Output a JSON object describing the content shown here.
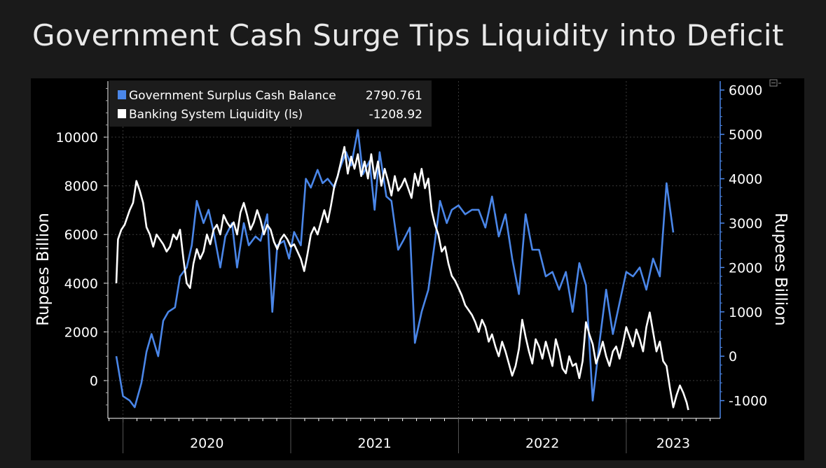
{
  "title": "Government Cash Surge Tips Liquidity into Deficit",
  "chart_data": {
    "type": "line",
    "legend_placement": "top-left",
    "grid": true,
    "x_axis": {
      "years": [
        "2020",
        "2021",
        "2022",
        "2023"
      ],
      "range": [
        "2019-12",
        "2023-09"
      ]
    },
    "y_left": {
      "label": "Rupees Billion",
      "ticks": [
        "10000",
        "8000",
        "6000",
        "4000",
        "2000",
        "0"
      ],
      "range": [
        -1550,
        12300
      ]
    },
    "y_right": {
      "label": "Rupees Billion",
      "ticks": [
        "6000",
        "5000",
        "4000",
        "3000",
        "2000",
        "1000",
        "0",
        "-1000"
      ],
      "range": [
        -1400,
        6200
      ]
    },
    "series": [
      {
        "name": "Government Surplus Cash Balance",
        "last_value": "2790.761",
        "axis": "right",
        "color": "#4a86e8",
        "values": [
          [
            2019.96,
            0
          ],
          [
            2020.0,
            -900
          ],
          [
            2020.04,
            -1000
          ],
          [
            2020.07,
            -1150
          ],
          [
            2020.11,
            -600
          ],
          [
            2020.14,
            100
          ],
          [
            2020.17,
            500
          ],
          [
            2020.21,
            0
          ],
          [
            2020.24,
            800
          ],
          [
            2020.27,
            1000
          ],
          [
            2020.31,
            1100
          ],
          [
            2020.34,
            1800
          ],
          [
            2020.38,
            2000
          ],
          [
            2020.41,
            2500
          ],
          [
            2020.44,
            3500
          ],
          [
            2020.48,
            3000
          ],
          [
            2020.51,
            3300
          ],
          [
            2020.54,
            2800
          ],
          [
            2020.58,
            2000
          ],
          [
            2020.61,
            2700
          ],
          [
            2020.65,
            3000
          ],
          [
            2020.68,
            2000
          ],
          [
            2020.72,
            3000
          ],
          [
            2020.75,
            2500
          ],
          [
            2020.79,
            2700
          ],
          [
            2020.82,
            2600
          ],
          [
            2020.86,
            3200
          ],
          [
            2020.89,
            1000
          ],
          [
            2020.92,
            2500
          ],
          [
            2020.96,
            2600
          ],
          [
            2020.99,
            2200
          ],
          [
            2021.02,
            2800
          ],
          [
            2021.06,
            2500
          ],
          [
            2021.09,
            4000
          ],
          [
            2021.12,
            3800
          ],
          [
            2021.16,
            4200
          ],
          [
            2021.19,
            3900
          ],
          [
            2021.22,
            4000
          ],
          [
            2021.26,
            3800
          ],
          [
            2021.29,
            4200
          ],
          [
            2021.33,
            4600
          ],
          [
            2021.36,
            4300
          ],
          [
            2021.4,
            5100
          ],
          [
            2021.43,
            4100
          ],
          [
            2021.47,
            4400
          ],
          [
            2021.5,
            3300
          ],
          [
            2021.53,
            4600
          ],
          [
            2021.57,
            3600
          ],
          [
            2021.6,
            3500
          ],
          [
            2021.64,
            2400
          ],
          [
            2021.67,
            2600
          ],
          [
            2021.71,
            2900
          ],
          [
            2021.74,
            300
          ],
          [
            2021.78,
            1000
          ],
          [
            2021.82,
            1500
          ],
          [
            2021.86,
            2600
          ],
          [
            2021.89,
            3500
          ],
          [
            2021.93,
            3000
          ],
          [
            2021.96,
            3300
          ],
          [
            2022.0,
            3400
          ],
          [
            2022.04,
            3200
          ],
          [
            2022.08,
            3300
          ],
          [
            2022.12,
            3300
          ],
          [
            2022.16,
            2900
          ],
          [
            2022.2,
            3600
          ],
          [
            2022.24,
            2700
          ],
          [
            2022.28,
            3200
          ],
          [
            2022.32,
            2200
          ],
          [
            2022.36,
            1400
          ],
          [
            2022.4,
            3200
          ],
          [
            2022.44,
            2400
          ],
          [
            2022.48,
            2400
          ],
          [
            2022.52,
            1800
          ],
          [
            2022.56,
            1900
          ],
          [
            2022.6,
            1500
          ],
          [
            2022.64,
            1900
          ],
          [
            2022.68,
            1000
          ],
          [
            2022.72,
            2100
          ],
          [
            2022.76,
            1600
          ],
          [
            2022.8,
            -1000
          ],
          [
            2022.84,
            300
          ],
          [
            2022.88,
            1500
          ],
          [
            2022.92,
            500
          ],
          [
            2022.96,
            1200
          ],
          [
            2023.0,
            1900
          ],
          [
            2023.04,
            1800
          ],
          [
            2023.08,
            2000
          ],
          [
            2023.12,
            1500
          ],
          [
            2023.16,
            2200
          ],
          [
            2023.2,
            1800
          ],
          [
            2023.24,
            3900
          ],
          [
            2023.28,
            2790
          ]
        ]
      },
      {
        "name": "Banking System Liquidity (ls)",
        "last_value": "-1208.92",
        "axis": "left",
        "color": "#ffffff",
        "values": [
          [
            2019.96,
            4000
          ],
          [
            2019.97,
            5800
          ],
          [
            2019.99,
            6200
          ],
          [
            2020.01,
            6400
          ],
          [
            2020.04,
            7000
          ],
          [
            2020.06,
            7300
          ],
          [
            2020.08,
            8200
          ],
          [
            2020.1,
            7800
          ],
          [
            2020.12,
            7300
          ],
          [
            2020.14,
            6300
          ],
          [
            2020.16,
            6000
          ],
          [
            2020.18,
            5500
          ],
          [
            2020.2,
            6000
          ],
          [
            2020.22,
            5800
          ],
          [
            2020.24,
            5600
          ],
          [
            2020.26,
            5300
          ],
          [
            2020.28,
            5500
          ],
          [
            2020.3,
            6000
          ],
          [
            2020.32,
            5800
          ],
          [
            2020.34,
            6200
          ],
          [
            2020.36,
            5000
          ],
          [
            2020.38,
            4000
          ],
          [
            2020.4,
            3800
          ],
          [
            2020.42,
            4800
          ],
          [
            2020.44,
            5400
          ],
          [
            2020.46,
            5000
          ],
          [
            2020.48,
            5300
          ],
          [
            2020.5,
            6000
          ],
          [
            2020.52,
            5600
          ],
          [
            2020.54,
            6200
          ],
          [
            2020.56,
            6400
          ],
          [
            2020.58,
            6000
          ],
          [
            2020.6,
            6800
          ],
          [
            2020.62,
            6500
          ],
          [
            2020.64,
            6300
          ],
          [
            2020.66,
            6500
          ],
          [
            2020.68,
            6000
          ],
          [
            2020.7,
            6900
          ],
          [
            2020.72,
            7300
          ],
          [
            2020.74,
            6800
          ],
          [
            2020.76,
            6200
          ],
          [
            2020.78,
            6500
          ],
          [
            2020.8,
            7000
          ],
          [
            2020.82,
            6600
          ],
          [
            2020.84,
            6000
          ],
          [
            2020.86,
            6400
          ],
          [
            2020.88,
            6200
          ],
          [
            2020.9,
            5700
          ],
          [
            2020.92,
            5400
          ],
          [
            2020.94,
            5800
          ],
          [
            2020.96,
            6000
          ],
          [
            2020.98,
            5800
          ],
          [
            2021.0,
            5500
          ],
          [
            2021.02,
            5600
          ],
          [
            2021.04,
            5300
          ],
          [
            2021.06,
            5000
          ],
          [
            2021.08,
            4500
          ],
          [
            2021.1,
            5200
          ],
          [
            2021.12,
            6000
          ],
          [
            2021.14,
            6300
          ],
          [
            2021.16,
            6000
          ],
          [
            2021.18,
            6500
          ],
          [
            2021.2,
            7000
          ],
          [
            2021.22,
            6500
          ],
          [
            2021.24,
            7200
          ],
          [
            2021.26,
            8000
          ],
          [
            2021.28,
            8400
          ],
          [
            2021.3,
            9000
          ],
          [
            2021.32,
            9600
          ],
          [
            2021.34,
            8500
          ],
          [
            2021.36,
            9200
          ],
          [
            2021.38,
            8700
          ],
          [
            2021.4,
            9300
          ],
          [
            2021.42,
            8400
          ],
          [
            2021.44,
            9000
          ],
          [
            2021.46,
            8300
          ],
          [
            2021.48,
            9300
          ],
          [
            2021.5,
            8300
          ],
          [
            2021.52,
            9000
          ],
          [
            2021.54,
            8000
          ],
          [
            2021.56,
            8700
          ],
          [
            2021.58,
            8200
          ],
          [
            2021.6,
            7600
          ],
          [
            2021.62,
            8400
          ],
          [
            2021.64,
            7800
          ],
          [
            2021.66,
            8000
          ],
          [
            2021.68,
            8300
          ],
          [
            2021.7,
            7900
          ],
          [
            2021.72,
            7500
          ],
          [
            2021.74,
            8500
          ],
          [
            2021.76,
            8000
          ],
          [
            2021.78,
            8700
          ],
          [
            2021.8,
            7900
          ],
          [
            2021.82,
            8300
          ],
          [
            2021.84,
            7000
          ],
          [
            2021.86,
            6400
          ],
          [
            2021.88,
            6000
          ],
          [
            2021.9,
            5300
          ],
          [
            2021.92,
            5500
          ],
          [
            2021.94,
            4800
          ],
          [
            2021.96,
            4300
          ],
          [
            2021.98,
            4100
          ],
          [
            2022.0,
            3800
          ],
          [
            2022.02,
            3500
          ],
          [
            2022.04,
            3100
          ],
          [
            2022.06,
            2900
          ],
          [
            2022.08,
            2700
          ],
          [
            2022.1,
            2400
          ],
          [
            2022.12,
            2000
          ],
          [
            2022.14,
            2500
          ],
          [
            2022.16,
            2200
          ],
          [
            2022.18,
            1600
          ],
          [
            2022.2,
            1900
          ],
          [
            2022.22,
            1400
          ],
          [
            2022.24,
            1000
          ],
          [
            2022.26,
            1600
          ],
          [
            2022.28,
            1200
          ],
          [
            2022.3,
            700
          ],
          [
            2022.32,
            200
          ],
          [
            2022.34,
            600
          ],
          [
            2022.36,
            1300
          ],
          [
            2022.38,
            2500
          ],
          [
            2022.4,
            1800
          ],
          [
            2022.42,
            1200
          ],
          [
            2022.44,
            700
          ],
          [
            2022.46,
            1700
          ],
          [
            2022.48,
            1400
          ],
          [
            2022.5,
            900
          ],
          [
            2022.52,
            1600
          ],
          [
            2022.54,
            1100
          ],
          [
            2022.56,
            600
          ],
          [
            2022.58,
            1700
          ],
          [
            2022.6,
            1200
          ],
          [
            2022.62,
            500
          ],
          [
            2022.64,
            300
          ],
          [
            2022.66,
            1000
          ],
          [
            2022.68,
            600
          ],
          [
            2022.7,
            700
          ],
          [
            2022.72,
            100
          ],
          [
            2022.74,
            800
          ],
          [
            2022.76,
            2400
          ],
          [
            2022.78,
            1900
          ],
          [
            2022.8,
            1500
          ],
          [
            2022.82,
            700
          ],
          [
            2022.84,
            1100
          ],
          [
            2022.86,
            1600
          ],
          [
            2022.88,
            1000
          ],
          [
            2022.9,
            600
          ],
          [
            2022.92,
            1200
          ],
          [
            2022.94,
            1400
          ],
          [
            2022.96,
            900
          ],
          [
            2022.98,
            1500
          ],
          [
            2023.0,
            2200
          ],
          [
            2023.02,
            1800
          ],
          [
            2023.04,
            1400
          ],
          [
            2023.06,
            2100
          ],
          [
            2023.08,
            1700
          ],
          [
            2023.1,
            1200
          ],
          [
            2023.12,
            2200
          ],
          [
            2023.14,
            2800
          ],
          [
            2023.16,
            2000
          ],
          [
            2023.18,
            1200
          ],
          [
            2023.2,
            1600
          ],
          [
            2023.22,
            800
          ],
          [
            2023.24,
            600
          ],
          [
            2023.26,
            -300
          ],
          [
            2023.28,
            -1100
          ],
          [
            2023.3,
            -600
          ],
          [
            2023.32,
            -200
          ],
          [
            2023.34,
            -500
          ],
          [
            2023.36,
            -900
          ],
          [
            2023.37,
            -1209
          ]
        ]
      }
    ]
  }
}
